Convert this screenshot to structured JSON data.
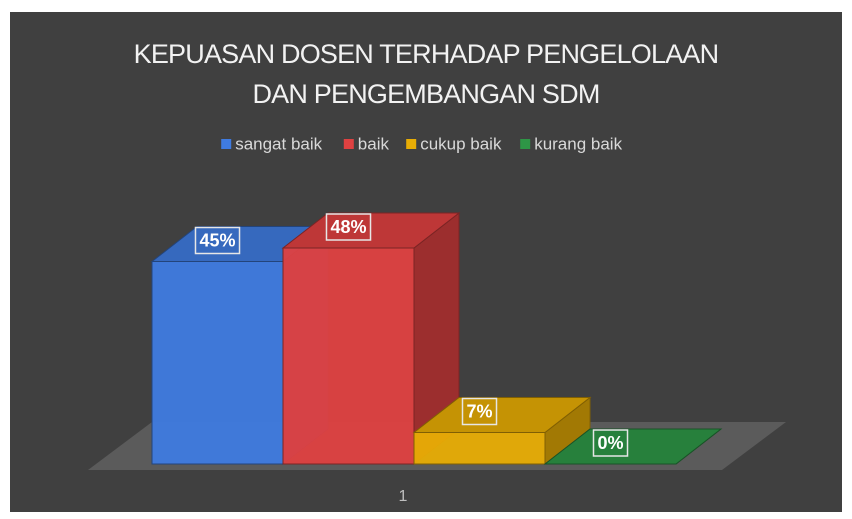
{
  "chart_data": {
    "type": "bar3d",
    "title": "KEPUASAN DOSEN TERHADAP PENGELOLAAN DAN PENGEMBANGAN SDM",
    "categories": [
      "1"
    ],
    "series": [
      {
        "name": "sangat baik",
        "color": "#3f7be0",
        "values": [
          45
        ],
        "value_labels": [
          "45%"
        ]
      },
      {
        "name": "baik",
        "color": "#df4141",
        "values": [
          48
        ],
        "value_labels": [
          "48%"
        ]
      },
      {
        "name": "cukup baik",
        "color": "#e8ad05",
        "values": [
          7
        ],
        "value_labels": [
          "7%"
        ]
      },
      {
        "name": "kurang baik",
        "color": "#2e9646",
        "values": [
          0
        ],
        "value_labels": [
          "0%"
        ]
      }
    ],
    "legend": "top"
  }
}
